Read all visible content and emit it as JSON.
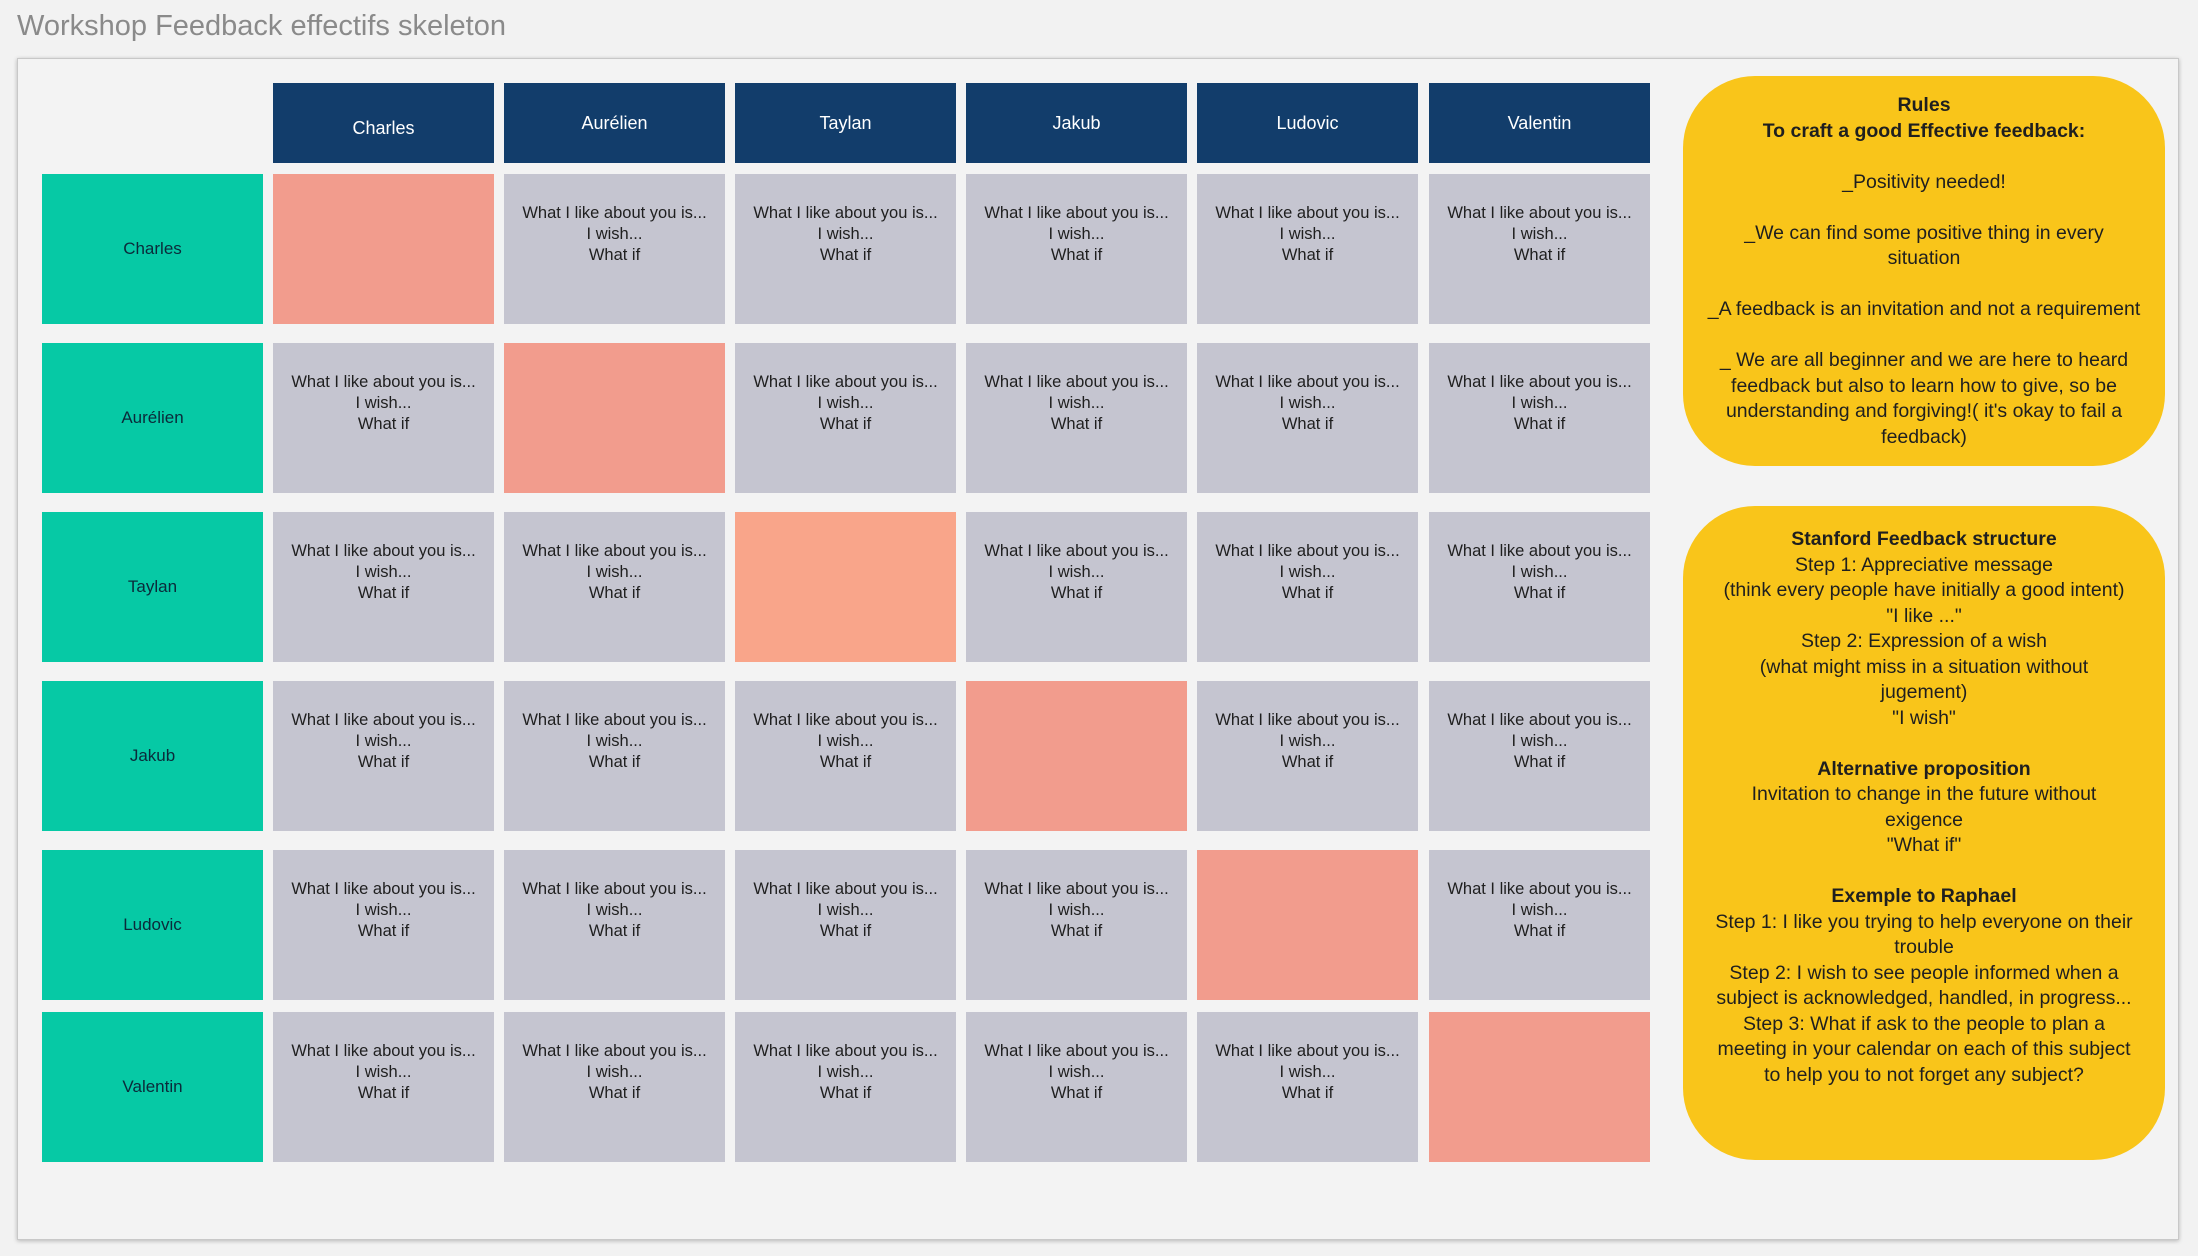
{
  "page": {
    "title": "Workshop Feedback effectifs skeleton"
  },
  "colors": {
    "header_navy": "#123d6b",
    "row_teal": "#06c9a5",
    "card_gray": "#c5c5d0",
    "self_salmon": "#f29c8d",
    "note_yellow": "#f9c51a"
  },
  "matrix": {
    "columns": [
      "Charles",
      "Aurélien",
      "Taylan",
      "Jakub",
      "Ludovic",
      "Valentin"
    ],
    "rows": [
      "Charles",
      "Aurélien",
      "Taylan",
      "Jakub",
      "Ludovic",
      "Valentin"
    ],
    "card_lines": [
      "What I like about you is...",
      "I wish...",
      "What if"
    ]
  },
  "rules_note": {
    "lines": [
      {
        "text": "Rules",
        "bold": true
      },
      {
        "text": "To craft a good Effective feedback:",
        "bold": true
      },
      {
        "text": ""
      },
      {
        "text": "_Positivity needed!"
      },
      {
        "text": ""
      },
      {
        "text": "_We can find some positive thing in every"
      },
      {
        "text": "situation"
      },
      {
        "text": ""
      },
      {
        "text": "_A feedback is an invitation and not a requirement"
      },
      {
        "text": ""
      },
      {
        "text": "_ We are all beginner and we are here to heard"
      },
      {
        "text": "feedback but also to learn how to give, so be"
      },
      {
        "text": "understanding and forgiving!( it's okay to fail a"
      },
      {
        "text": "feedback)"
      }
    ]
  },
  "stanford_note": {
    "lines": [
      {
        "text": "Stanford Feedback structure",
        "bold": true
      },
      {
        "text": "Step 1: Appreciative message"
      },
      {
        "text": "(think every people have initially a good intent)"
      },
      {
        "text": "\"I like ...\""
      },
      {
        "text": "Step 2: Expression of a wish"
      },
      {
        "text": "(what might miss in a situation without"
      },
      {
        "text": "jugement)"
      },
      {
        "text": "\"I wish\""
      },
      {
        "text": ""
      },
      {
        "text": "Alternative proposition",
        "bold": true
      },
      {
        "text": "Invitation to change in the future without"
      },
      {
        "text": "exigence"
      },
      {
        "text": "\"What if\""
      },
      {
        "text": ""
      },
      {
        "text": "Exemple to Raphael",
        "bold": true
      },
      {
        "text": "Step 1: I like you trying to help everyone on their"
      },
      {
        "text": "trouble"
      },
      {
        "text": "Step 2: I wish to see people informed when a"
      },
      {
        "text": "subject is acknowledged, handled, in progress..."
      },
      {
        "text": "Step 3: What if ask to the people to plan a"
      },
      {
        "text": "meeting in your calendar on each of this subject"
      },
      {
        "text": "to help you to not forget any subject?"
      }
    ]
  }
}
